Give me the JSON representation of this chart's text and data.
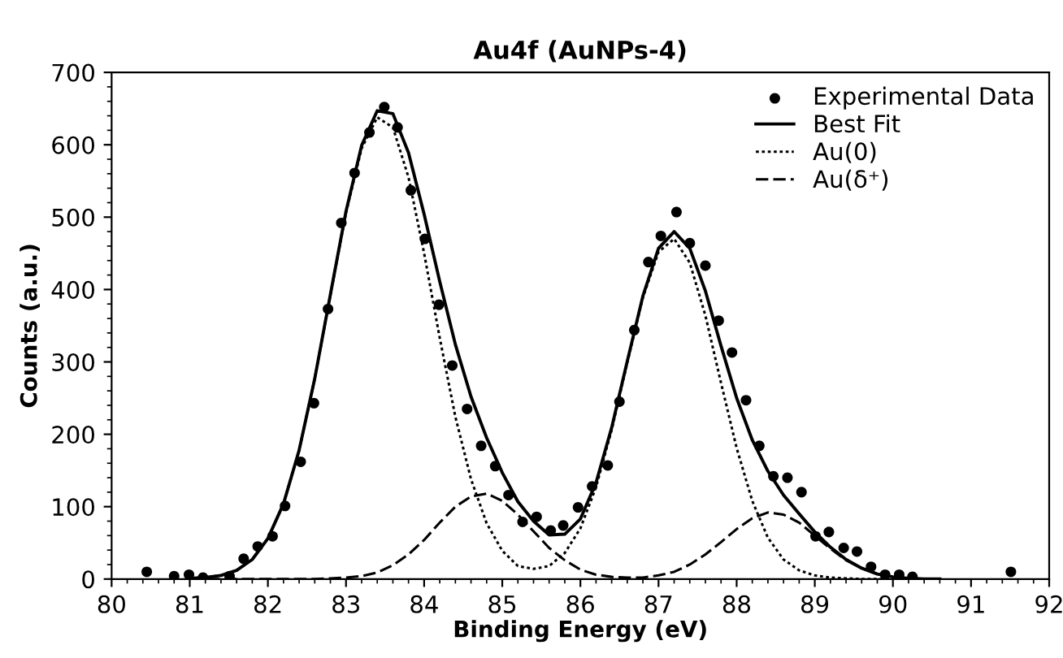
{
  "chart_data": {
    "type": "line",
    "title": "Au4f (AuNPs-4)",
    "xlabel": "Binding Energy (eV)",
    "ylabel": "Counts (a.u.)",
    "xlim": [
      80,
      92
    ],
    "xticks": [
      80,
      81,
      82,
      83,
      84,
      85,
      86,
      87,
      88,
      89,
      90,
      91,
      92
    ],
    "ylim": [
      0,
      700
    ],
    "yticks": [
      0,
      100,
      200,
      300,
      400,
      500,
      600,
      700
    ],
    "grid": false,
    "legend": "top right",
    "series": [
      {
        "name": "Experimental Data",
        "type": "scatter",
        "marker": "circle",
        "color": "#000000",
        "x": [
          80.45,
          80.8,
          80.99,
          81.17,
          81.51,
          81.69,
          81.87,
          82.06,
          82.22,
          82.42,
          82.59,
          82.77,
          82.94,
          83.11,
          83.3,
          83.49,
          83.66,
          83.83,
          84.01,
          84.19,
          84.36,
          84.55,
          84.73,
          84.91,
          85.08,
          85.26,
          85.44,
          85.62,
          85.78,
          85.97,
          86.15,
          86.35,
          86.5,
          86.69,
          86.87,
          87.03,
          87.23,
          87.4,
          87.6,
          87.77,
          87.94,
          88.12,
          88.29,
          88.47,
          88.65,
          88.83,
          89.01,
          89.18,
          89.37,
          89.54,
          89.72,
          89.9,
          90.08,
          90.25,
          91.51
        ],
        "values": [
          10,
          4,
          6,
          2,
          4,
          28,
          45,
          59,
          101,
          162,
          243,
          373,
          492,
          561,
          617,
          652,
          624,
          537,
          470,
          379,
          295,
          235,
          184,
          156,
          116,
          79,
          86,
          67,
          74,
          99,
          128,
          157,
          245,
          344,
          438,
          474,
          507,
          464,
          433,
          357,
          313,
          247,
          184,
          142,
          140,
          120,
          59,
          65,
          43,
          38,
          17,
          6,
          6,
          3,
          10
        ]
      },
      {
        "name": "Best Fit",
        "line_style": "solid",
        "color": "#000000",
        "x": [
          81.0,
          81.2,
          81.4,
          81.6,
          81.8,
          82.0,
          82.2,
          82.4,
          82.6,
          82.8,
          83.0,
          83.2,
          83.4,
          83.6,
          83.8,
          84.0,
          84.2,
          84.4,
          84.6,
          84.8,
          85.0,
          85.2,
          85.4,
          85.6,
          85.8,
          86.0,
          86.2,
          86.4,
          86.6,
          86.8,
          87.0,
          87.2,
          87.4,
          87.6,
          87.8,
          88.0,
          88.2,
          88.4,
          88.6,
          88.8,
          89.0,
          89.2,
          89.4,
          89.6,
          89.8,
          90.0,
          90.2,
          90.4,
          90.6
        ],
        "values": [
          1,
          2,
          5,
          12,
          27,
          56,
          104,
          178,
          277,
          393,
          508,
          599,
          647,
          643,
          589,
          504,
          411,
          324,
          252,
          195,
          147,
          107,
          80,
          61,
          62,
          83,
          133,
          209,
          301,
          391,
          457,
          480,
          457,
          398,
          322,
          250,
          192,
          149,
          116,
          90,
          65,
          44,
          27,
          15,
          7,
          3,
          1,
          0,
          0
        ]
      },
      {
        "name": "Au(0)",
        "line_style": "dotted",
        "color": "#000000",
        "x": [
          81.0,
          81.2,
          81.4,
          81.6,
          81.8,
          82.0,
          82.2,
          82.4,
          82.6,
          82.8,
          83.0,
          83.2,
          83.4,
          83.6,
          83.8,
          84.0,
          84.2,
          84.4,
          84.6,
          84.8,
          85.0,
          85.2,
          85.4,
          85.6,
          85.8,
          86.0,
          86.2,
          86.4,
          86.6,
          86.8,
          87.0,
          87.2,
          87.4,
          87.6,
          87.8,
          88.0,
          88.2,
          88.4,
          88.6,
          88.8,
          89.0,
          89.2,
          89.4,
          89.6,
          89.8,
          90.0,
          90.2,
          90.4,
          90.6
        ],
        "values": [
          1,
          2,
          5,
          12,
          27,
          56,
          104,
          178,
          277,
          392,
          506,
          595,
          638,
          624,
          555,
          450,
          333,
          224,
          138,
          77,
          39,
          18,
          14,
          18,
          36,
          70,
          127,
          206,
          299,
          389,
          452,
          470,
          437,
          364,
          271,
          181,
          108,
          57,
          27,
          12,
          5,
          2,
          1,
          0,
          0,
          0,
          0,
          0,
          0
        ]
      },
      {
        "name": "Au(δ⁺)",
        "line_style": "dashed",
        "color": "#000000",
        "x": [
          81.0,
          81.2,
          81.4,
          81.6,
          81.8,
          82.0,
          82.2,
          82.4,
          82.6,
          82.8,
          83.0,
          83.2,
          83.4,
          83.6,
          83.8,
          84.0,
          84.2,
          84.4,
          84.6,
          84.8,
          85.0,
          85.2,
          85.4,
          85.6,
          85.8,
          86.0,
          86.2,
          86.4,
          86.6,
          86.8,
          87.0,
          87.2,
          87.4,
          87.6,
          87.8,
          88.0,
          88.2,
          88.4,
          88.6,
          88.8,
          89.0,
          89.2,
          89.4,
          89.6,
          89.8,
          90.0,
          90.2,
          90.4,
          90.6
        ],
        "values": [
          0,
          0,
          0,
          0,
          0,
          0,
          0,
          0,
          0,
          1,
          2,
          4,
          9,
          19,
          34,
          54,
          78,
          100,
          114,
          118,
          108,
          89,
          66,
          43,
          26,
          13,
          6,
          3,
          2,
          2,
          5,
          10,
          20,
          34,
          51,
          69,
          84,
          92,
          89,
          78,
          60,
          42,
          26,
          15,
          7,
          3,
          1,
          0,
          0
        ]
      }
    ]
  }
}
